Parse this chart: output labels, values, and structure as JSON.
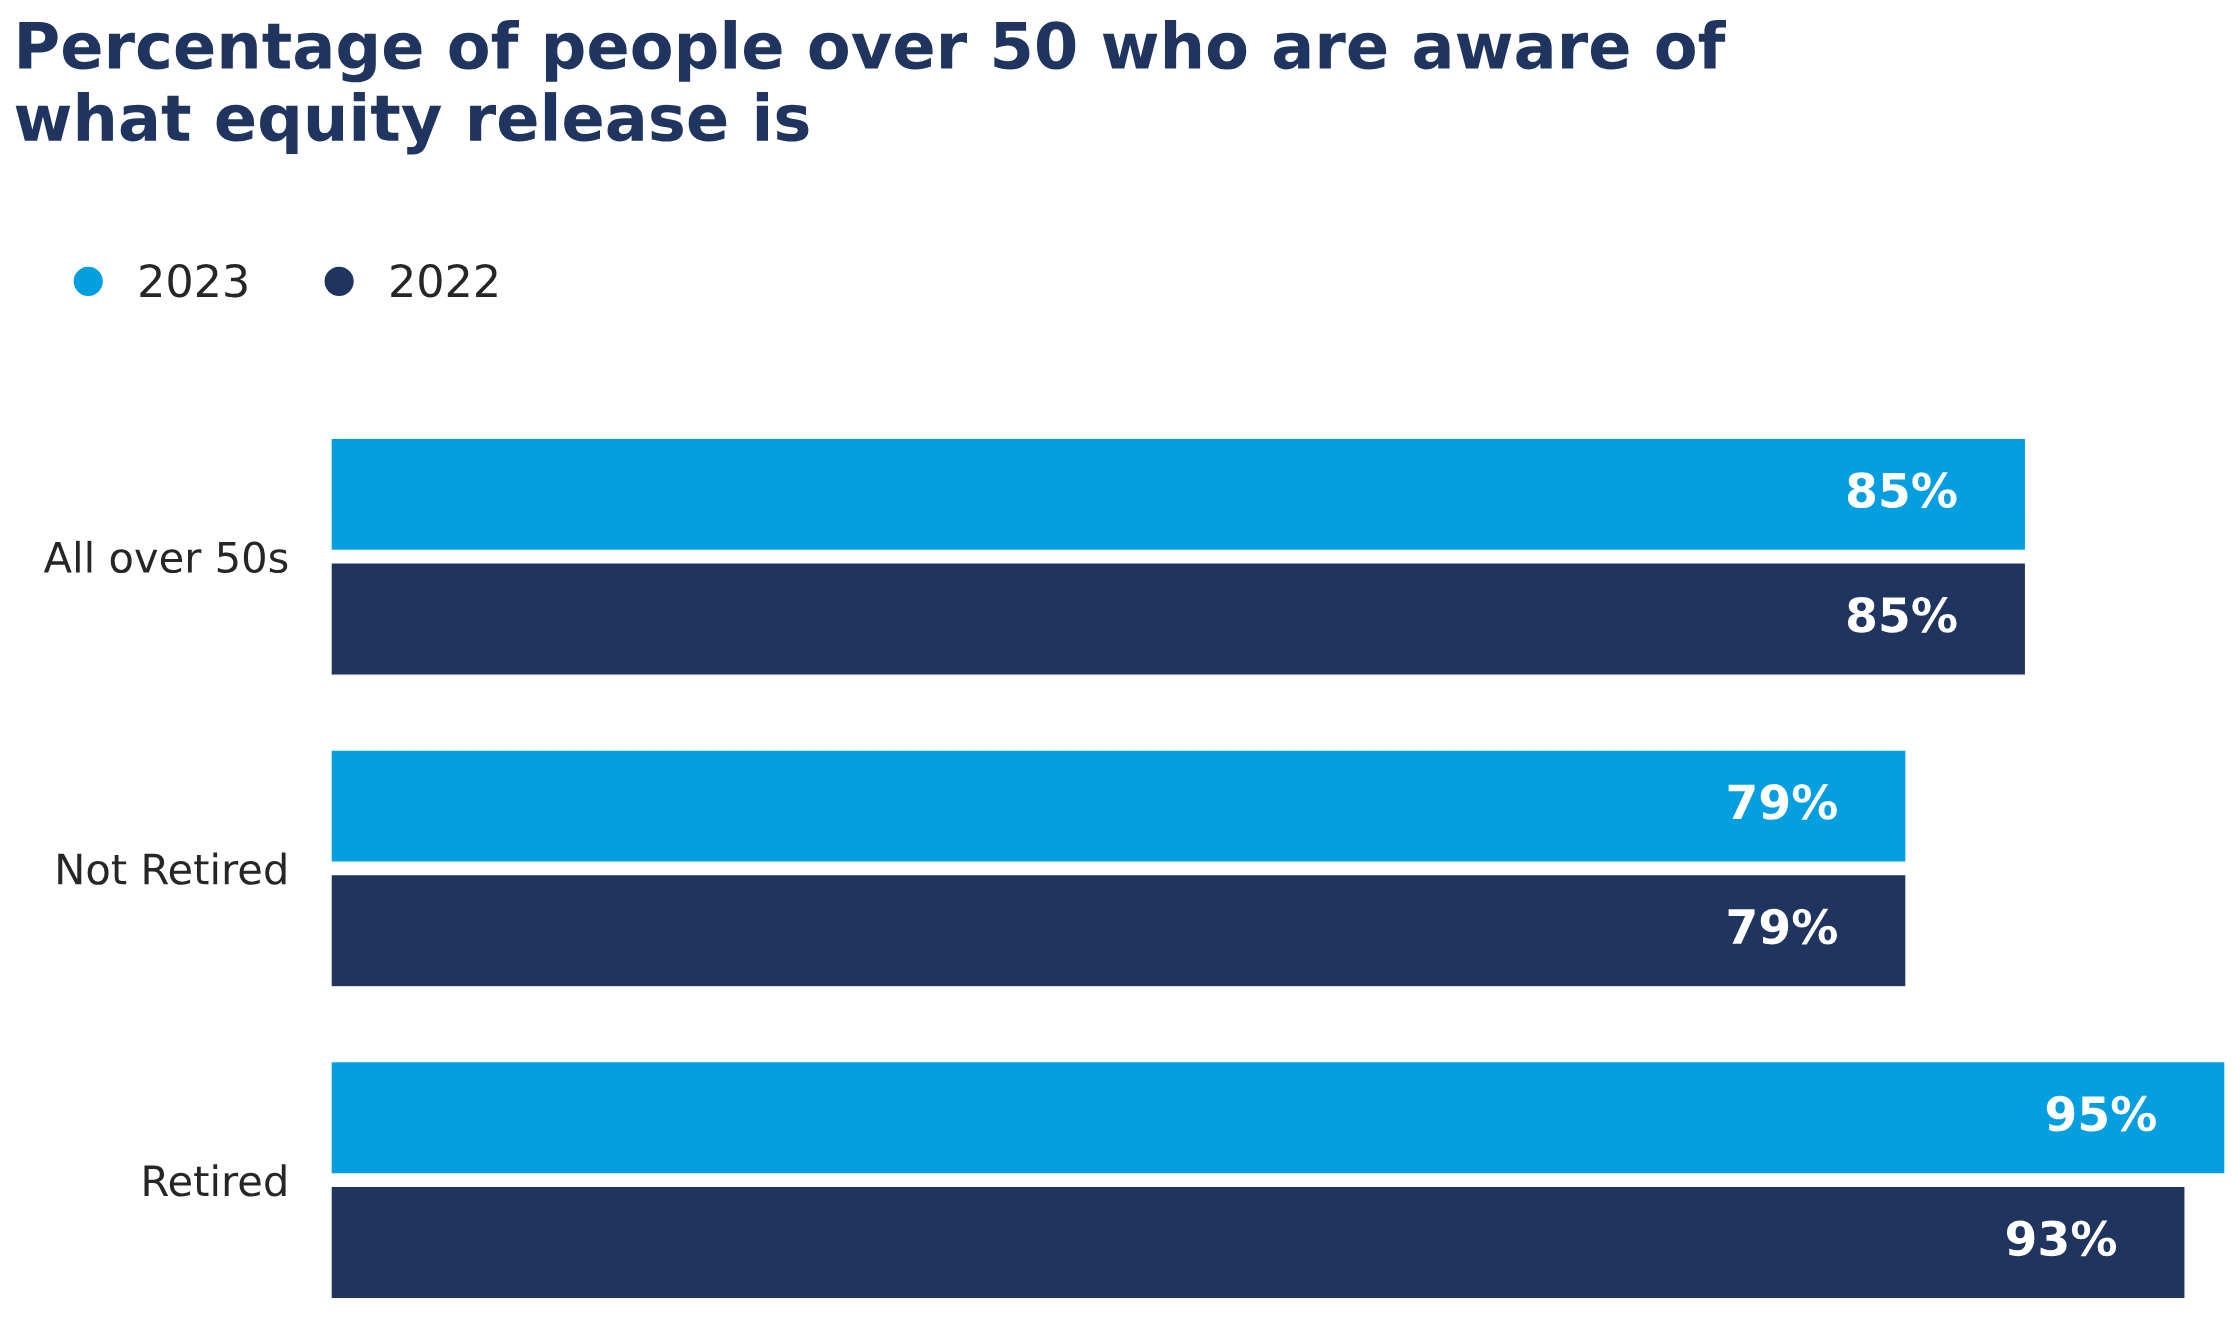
{
  "chart_data": {
    "type": "bar",
    "orientation": "horizontal",
    "title": "Percentage of people over 50 who are aware of\nwhat equity release is",
    "categories": [
      "All over 50s",
      "Not Retired",
      "Retired"
    ],
    "series": [
      {
        "name": "2023",
        "color": "#049fe0",
        "values": [
          85,
          79,
          95
        ],
        "value_labels": [
          "85%",
          "79%",
          "95%"
        ]
      },
      {
        "name": "2022",
        "color": "#1f3560",
        "values": [
          85,
          79,
          93
        ],
        "value_labels": [
          "85%",
          "79%",
          "93%"
        ]
      }
    ],
    "legend": "top left",
    "grid": false
  }
}
